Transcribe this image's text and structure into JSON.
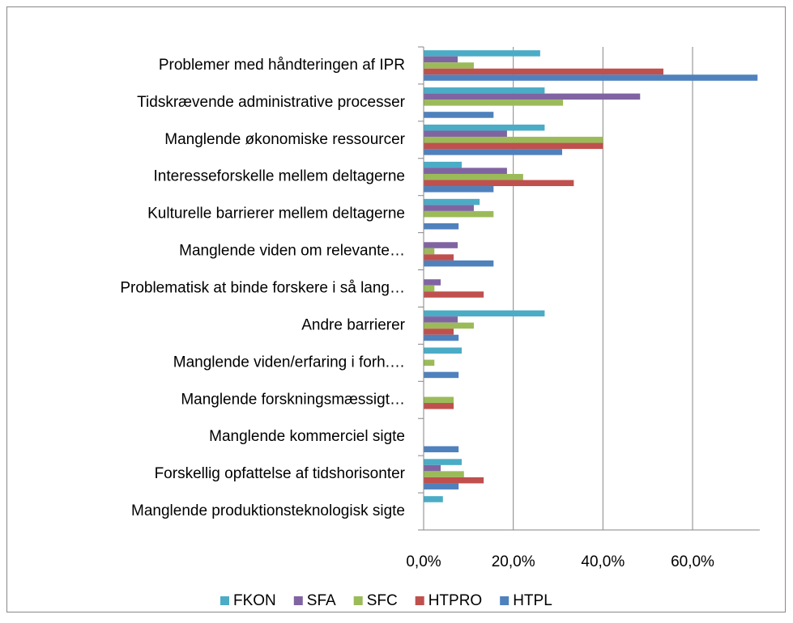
{
  "chart_data": {
    "type": "barh",
    "categories": [
      "Problemer med håndteringen af IPR",
      "Tidskrævende administrative processer",
      "Manglende økonomiske ressourcer",
      "Interesseforskelle mellem deltagerne",
      "Kulturelle barrierer mellem deltagerne",
      "Manglende viden om relevante…",
      "Problematisk at binde forskere i så lang…",
      "Andre barrierer",
      "Manglende viden/erfaring i forh.…",
      "Manglende forskningsmæssigt…",
      "Manglende kommerciel sigte",
      "Forskellig opfattelse af tidshorisonter",
      "Manglende produktionsteknologisk sigte"
    ],
    "series": [
      {
        "name": "FKON",
        "color": "#4bacc6",
        "values": [
          26,
          27,
          27,
          8.5,
          12.5,
          0,
          0,
          27,
          8.5,
          0,
          0,
          8.5,
          4.3
        ]
      },
      {
        "name": "SFA",
        "color": "#8064a2",
        "values": [
          7.6,
          48.3,
          18.6,
          18.6,
          11.2,
          7.6,
          3.8,
          7.6,
          0,
          0,
          0,
          3.8,
          0
        ]
      },
      {
        "name": "SFC",
        "color": "#9bbb59",
        "values": [
          11.2,
          31.1,
          40,
          22.2,
          15.6,
          2.4,
          2.4,
          11.2,
          2.4,
          6.7,
          0,
          9,
          0
        ]
      },
      {
        "name": "HTPRO",
        "color": "#c0504d",
        "values": [
          53.5,
          0,
          40,
          33.5,
          0,
          6.7,
          13.4,
          6.7,
          0,
          6.7,
          0,
          13.4,
          0
        ]
      },
      {
        "name": "HTPL",
        "color": "#4f81bd",
        "values": [
          74.5,
          15.6,
          30.9,
          15.6,
          7.8,
          15.6,
          0,
          7.8,
          7.8,
          0,
          7.8,
          7.8,
          0
        ]
      }
    ],
    "xlim": [
      0,
      75
    ],
    "xticks": [
      {
        "value": 0,
        "label": "0,0%"
      },
      {
        "value": 20,
        "label": "20,0%"
      },
      {
        "value": 40,
        "label": "40,0%"
      },
      {
        "value": 60,
        "label": "60,0%"
      }
    ],
    "grid": true,
    "legend": "bottom"
  }
}
